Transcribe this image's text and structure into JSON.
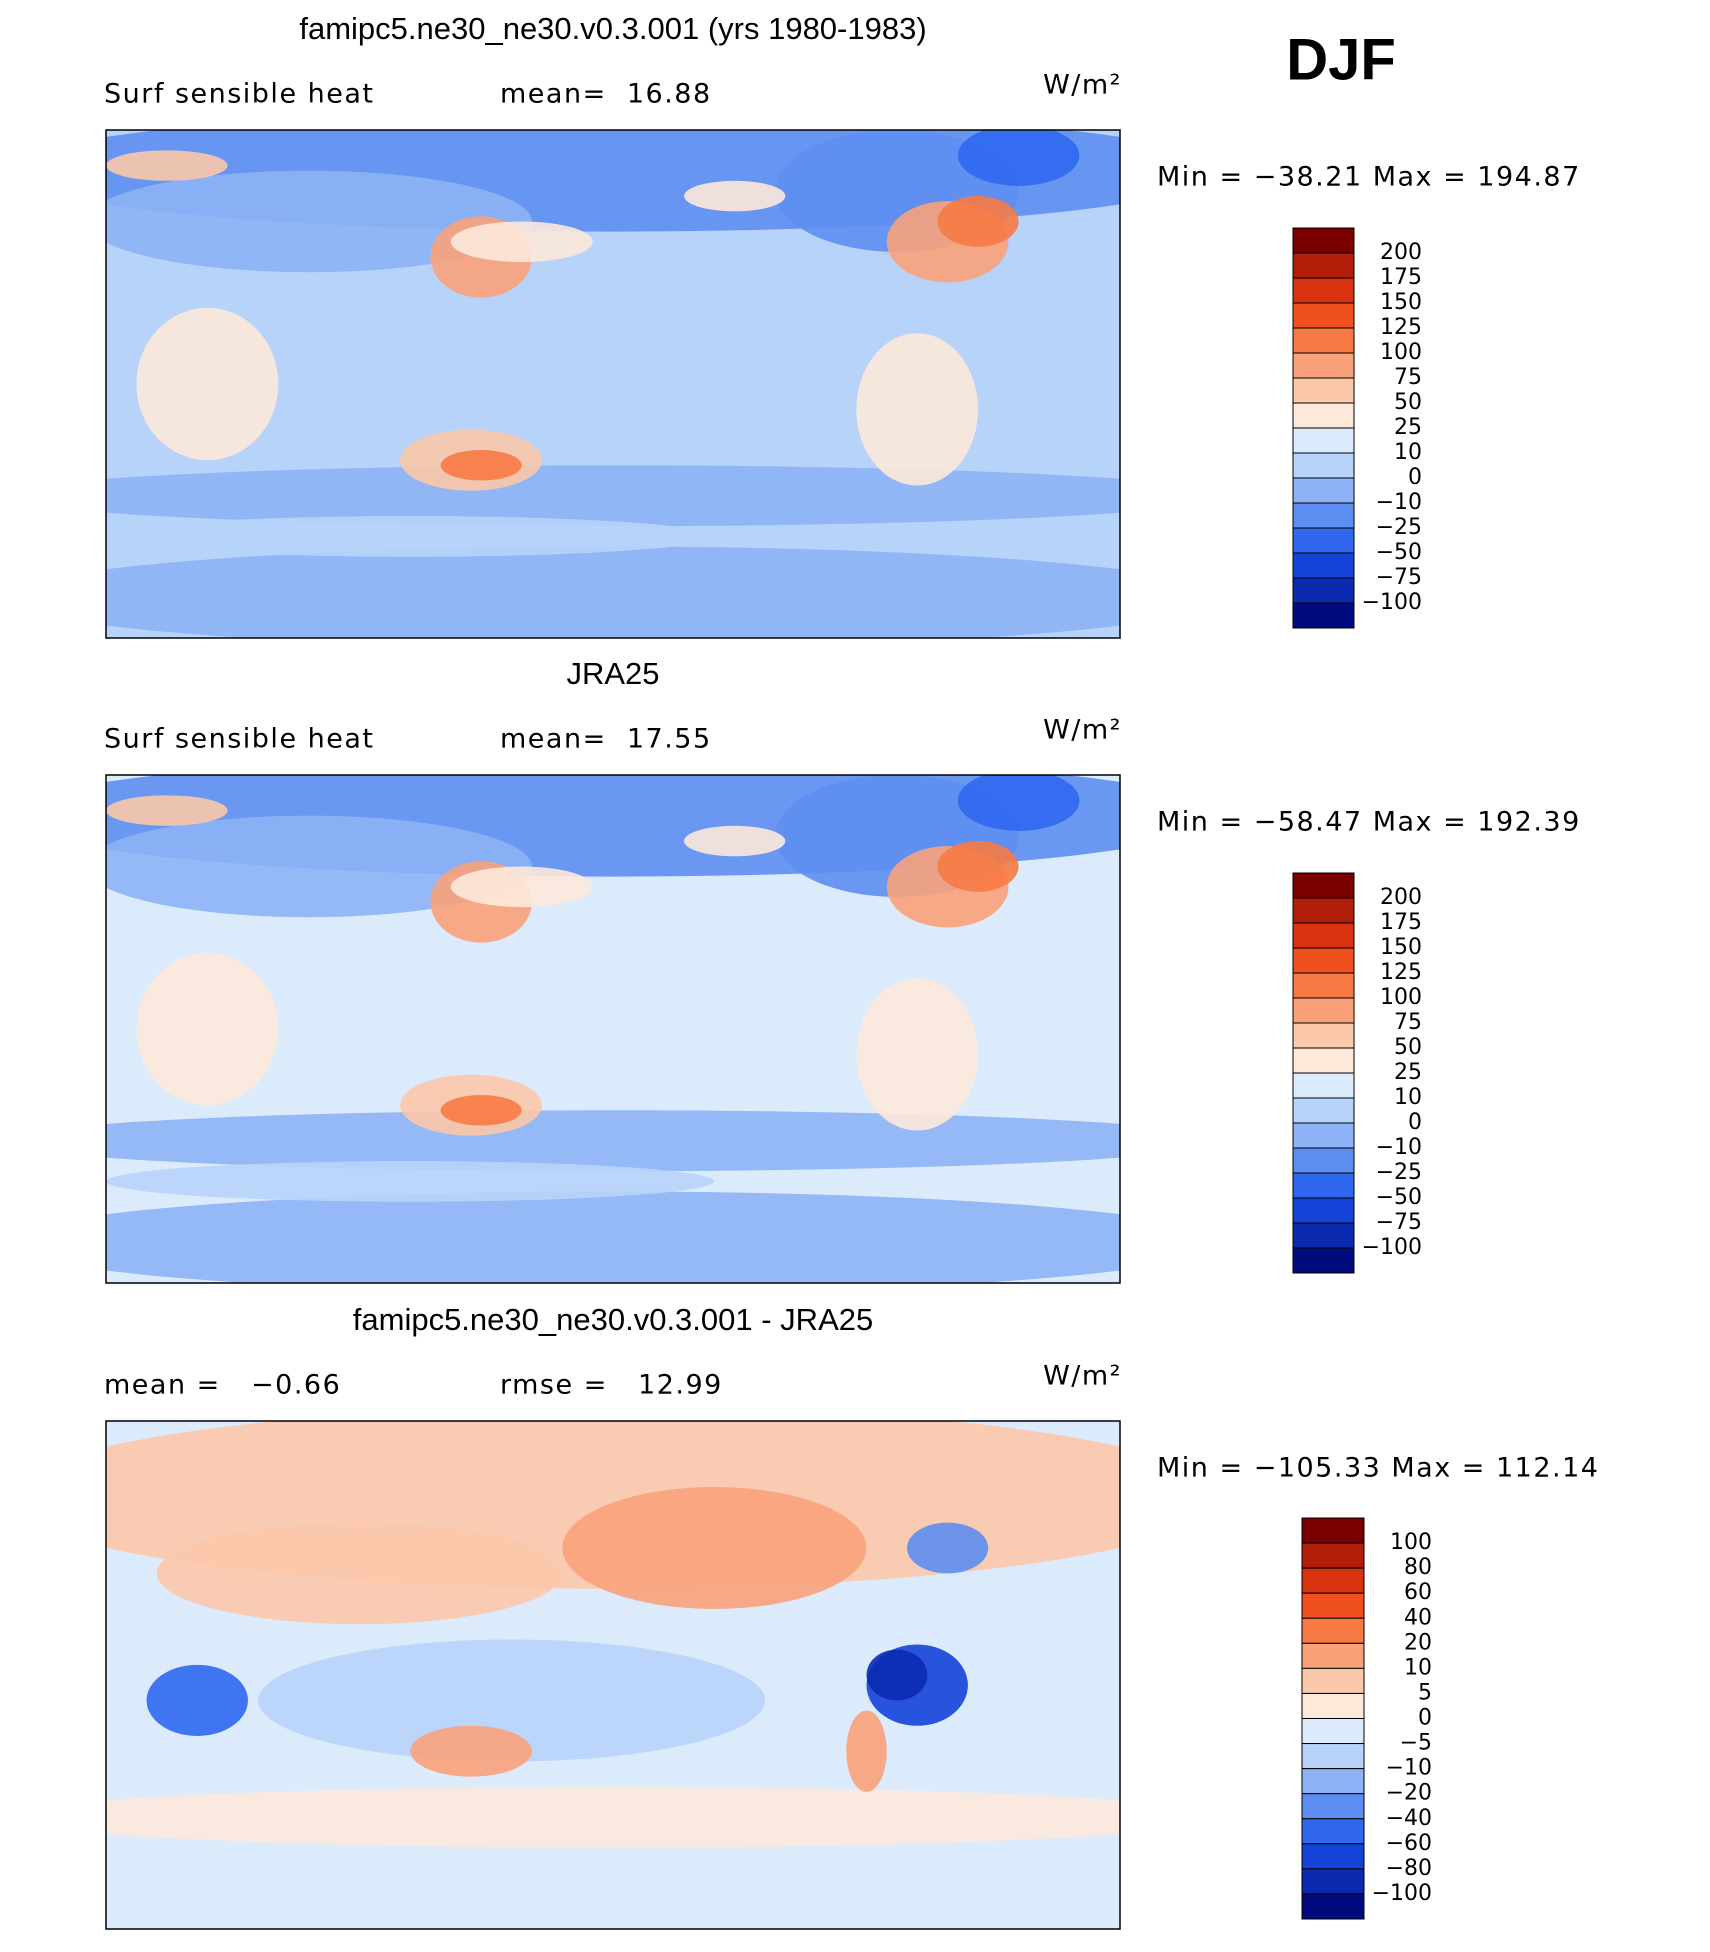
{
  "header": {
    "season": "DJF"
  },
  "panels": [
    {
      "title": "famipc5.ne30_ne30.v0.3.001 (yrs 1980-1983)",
      "left_text": "Surf sensible heat",
      "center_text": "mean=  16.88",
      "units": "W/m²",
      "range_text": "Min = −38.21 Max = 194.87",
      "colorbar_labels": [
        "200",
        "175",
        "150",
        "125",
        "100",
        "75",
        "50",
        "25",
        "10",
        "0",
        "−10",
        "−25",
        "−50",
        "−75",
        "−100"
      ]
    },
    {
      "title": "JRA25",
      "left_text": "Surf sensible heat",
      "center_text": "mean=  17.55",
      "units": "W/m²",
      "range_text": "Min = −58.47 Max = 192.39",
      "colorbar_labels": [
        "200",
        "175",
        "150",
        "125",
        "100",
        "75",
        "50",
        "25",
        "10",
        "0",
        "−10",
        "−25",
        "−50",
        "−75",
        "−100"
      ]
    },
    {
      "title": "famipc5.ne30_ne30.v0.3.001 - JRA25",
      "left_text": "mean =   −0.66",
      "center_text": "rmse =   12.99",
      "units": "W/m²",
      "range_text": "Min = −105.33 Max = 112.14",
      "colorbar_labels": [
        "100",
        "80",
        "60",
        "40",
        "20",
        "10",
        "5",
        "0",
        "−5",
        "−10",
        "−20",
        "−40",
        "−60",
        "−80",
        "−100"
      ]
    }
  ]
}
